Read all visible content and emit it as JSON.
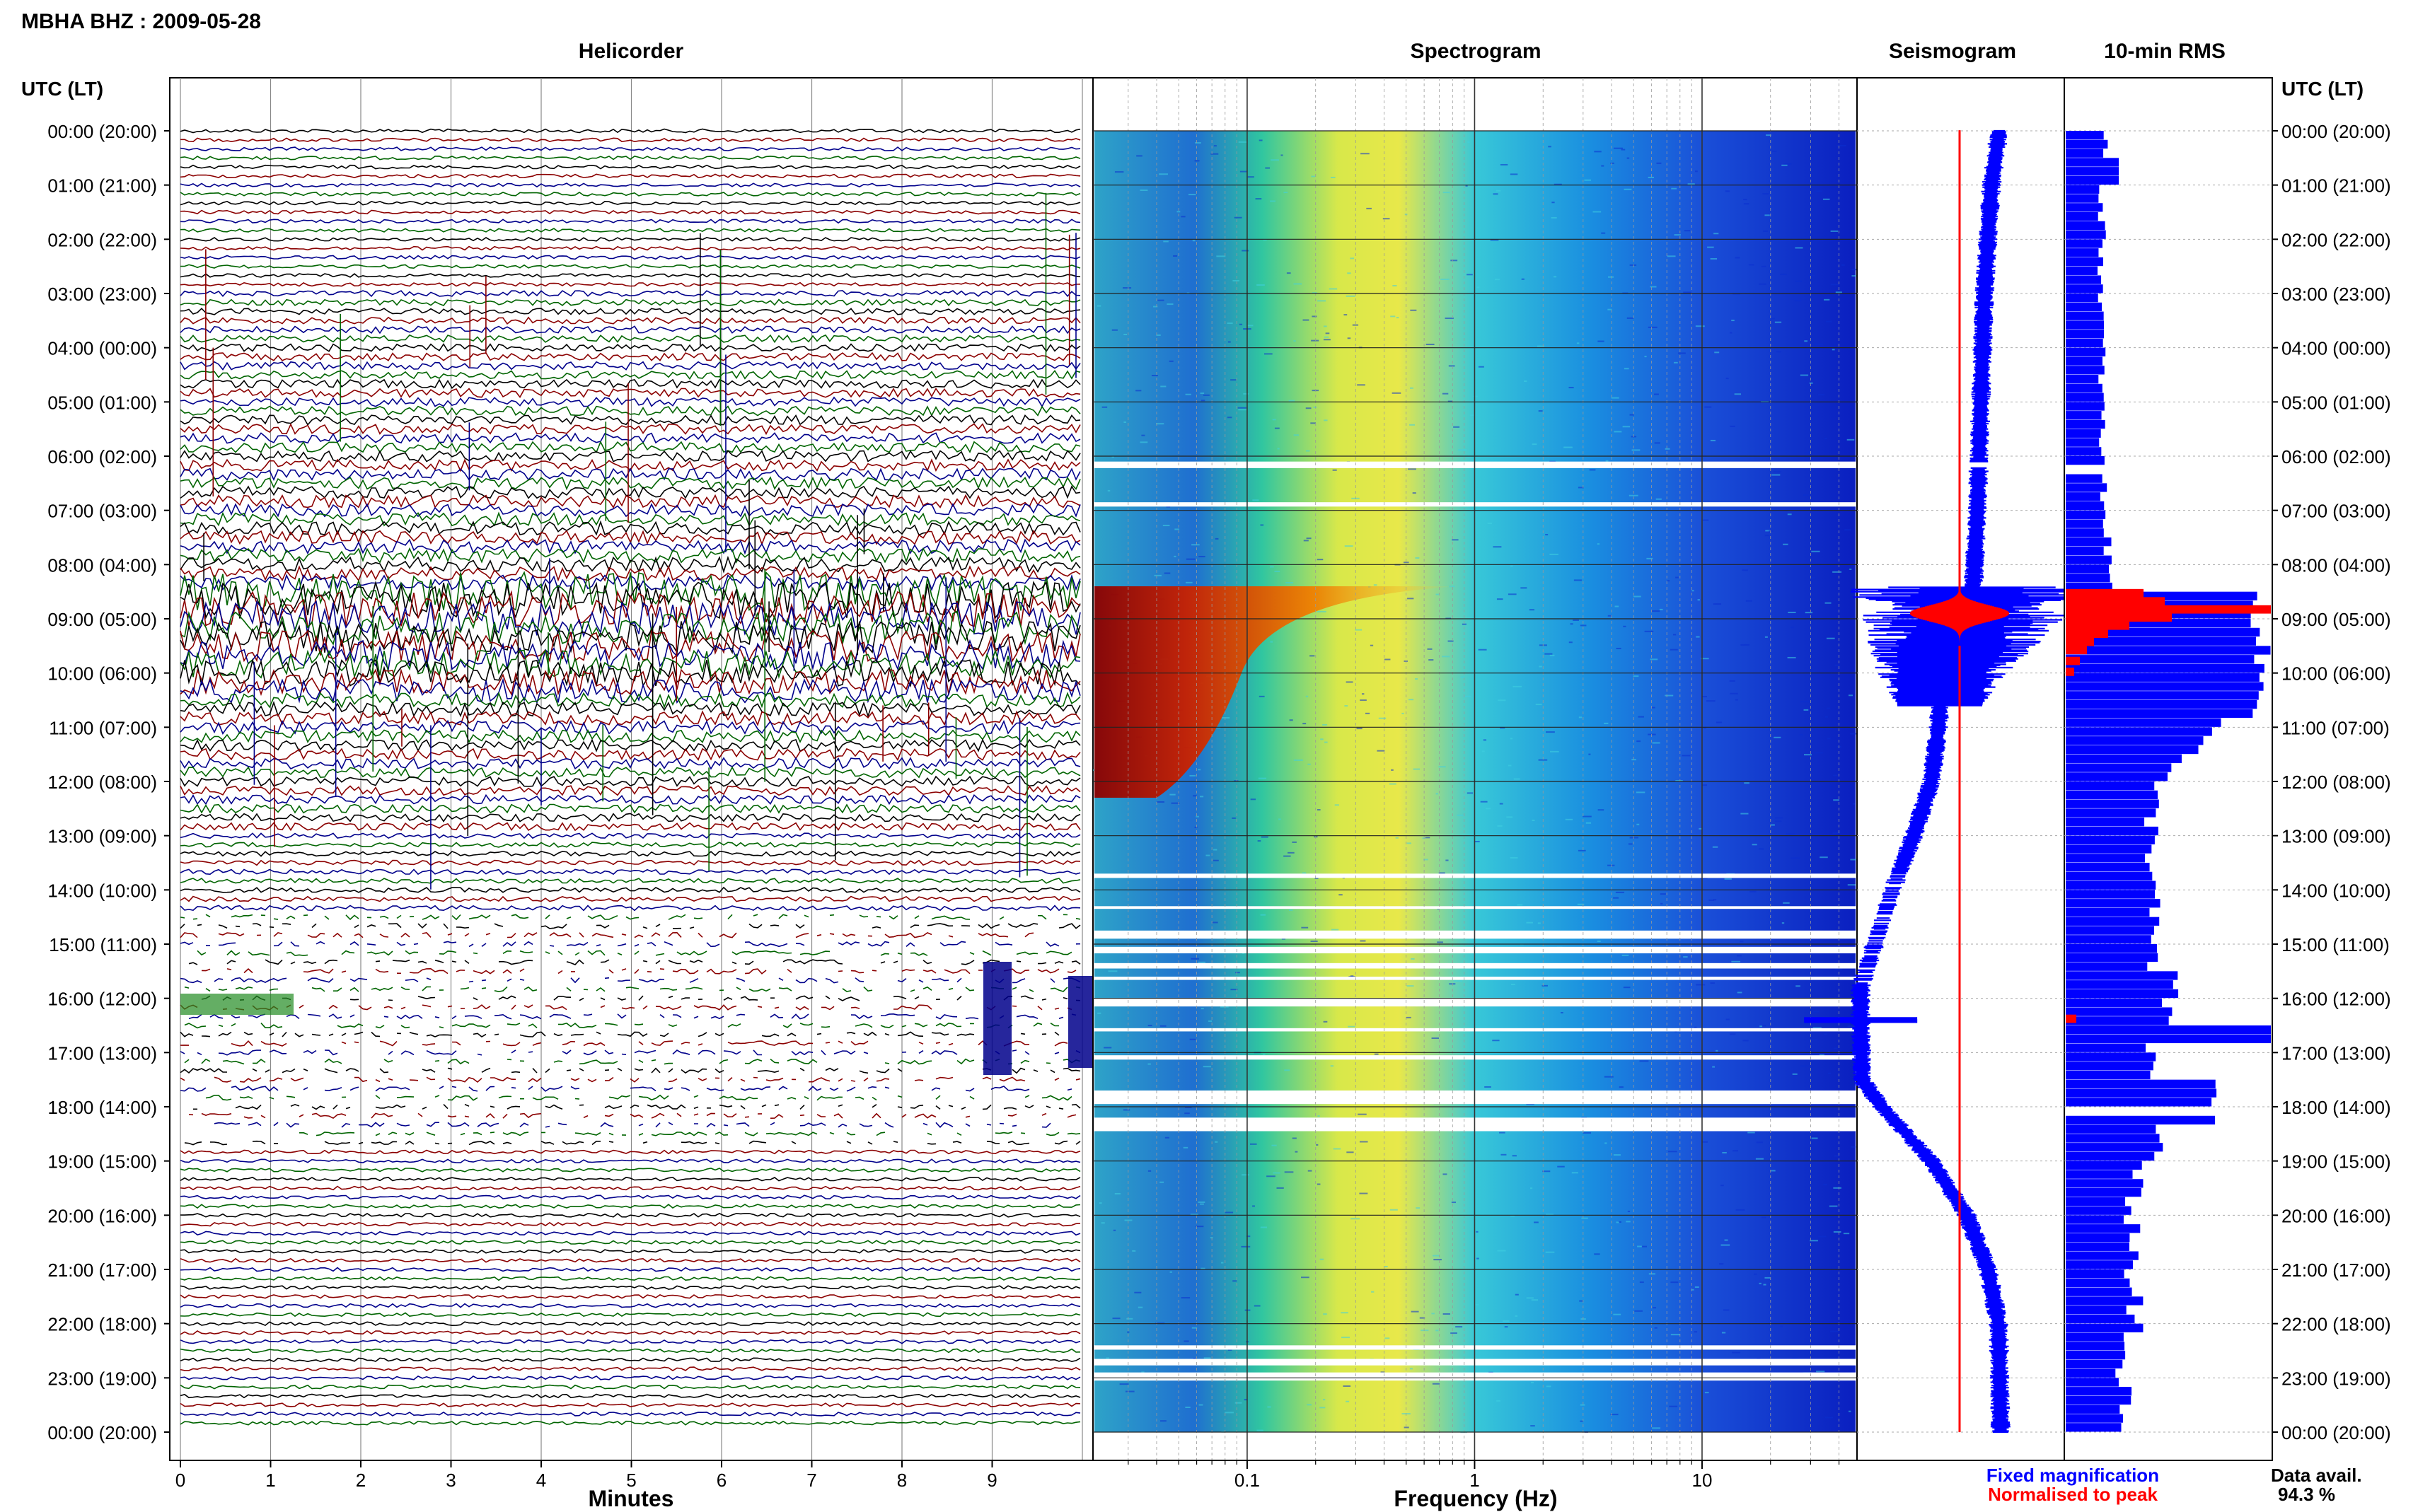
{
  "header": {
    "station_title": "MBHA BHZ : 2009-05-28"
  },
  "panels": {
    "helicorder": "Helicorder",
    "spectrogram": "Spectrogram",
    "seismogram": "Seismogram",
    "rms": "10-min RMS"
  },
  "time_axis": {
    "title_left": "UTC (LT)",
    "title_right": "UTC (LT)",
    "labels": [
      "00:00 (20:00)",
      "01:00 (21:00)",
      "02:00 (22:00)",
      "03:00 (23:00)",
      "04:00 (00:00)",
      "05:00 (01:00)",
      "06:00 (02:00)",
      "07:00 (03:00)",
      "08:00 (04:00)",
      "09:00 (05:00)",
      "10:00 (06:00)",
      "11:00 (07:00)",
      "12:00 (08:00)",
      "13:00 (09:00)",
      "14:00 (10:00)",
      "15:00 (11:00)",
      "16:00 (12:00)",
      "17:00 (13:00)",
      "18:00 (14:00)",
      "19:00 (15:00)",
      "20:00 (16:00)",
      "21:00 (17:00)",
      "22:00 (18:00)",
      "23:00 (19:00)",
      "00:00 (20:00)"
    ]
  },
  "helicorder_axis": {
    "xlabel": "Minutes",
    "ticks": [
      "0",
      "1",
      "2",
      "3",
      "4",
      "5",
      "6",
      "7",
      "8",
      "9"
    ]
  },
  "spectrogram_axis": {
    "xlabel": "Frequency (Hz)",
    "ticks": [
      "0.1",
      "1",
      "10"
    ],
    "scale": "log"
  },
  "legend": {
    "fixed": "Fixed magnification",
    "normalised": "Normalised to peak",
    "fixed_color": "#0000ff",
    "normalised_color": "#ff0000"
  },
  "availability": {
    "label": "Data avail.",
    "value": "94.3 %"
  },
  "colors": {
    "trace_black": "#000000",
    "trace_red": "#8b0000",
    "trace_blue": "#00008b",
    "trace_green": "#006400",
    "rms_fixed": "#0000ff",
    "rms_norm": "#ff0000"
  },
  "chart_data": [
    {
      "type": "line",
      "title": "Helicorder",
      "xlabel": "Minutes",
      "x_range": [
        0,
        10
      ],
      "rows_per_hour": 6,
      "hours": 24,
      "trace_colors": [
        "black",
        "red",
        "blue",
        "green"
      ]
    },
    {
      "type": "heatmap",
      "title": "Spectrogram",
      "xlabel": "Frequency (Hz)",
      "x_scale": "log",
      "x_ticks": [
        0.1,
        1,
        10
      ],
      "hours": 24
    },
    {
      "type": "line",
      "title": "Seismogram",
      "series": [
        {
          "name": "Fixed magnification"
        },
        {
          "name": "Normalised to peak"
        }
      ]
    },
    {
      "type": "bar",
      "title": "10-min RMS",
      "series": [
        {
          "name": "Fixed magnification"
        },
        {
          "name": "Normalised to peak"
        }
      ]
    }
  ]
}
